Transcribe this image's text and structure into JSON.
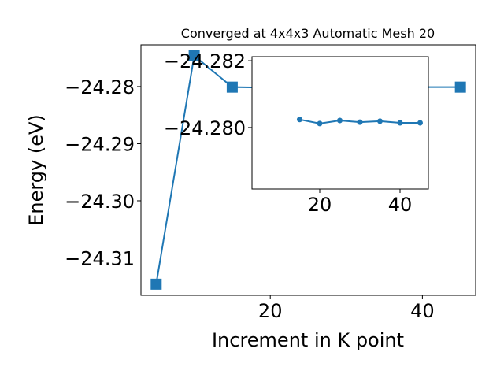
{
  "chart_data": [
    {
      "type": "line",
      "title": "Converged at 4x4x3 Automatic Mesh 20",
      "x_label": "Increment in K point",
      "y_label": "Energy (eV)",
      "x": [
        5,
        10,
        15,
        20,
        25,
        30,
        35,
        40,
        45
      ],
      "series": [
        {
          "color": "#1f77b4",
          "marker": "square",
          "values": [
            -24.3146,
            -24.2746,
            -24.2801,
            -24.2802,
            -24.2801,
            -24.2802,
            -24.2802,
            -24.2801,
            -24.2801
          ]
        }
      ],
      "xlim": [
        3,
        47
      ],
      "ylim": [
        -24.31655,
        -24.2727
      ],
      "xticks": [
        20,
        40
      ],
      "yticks": [
        {
          "value": -24.31,
          "label": "−24.31"
        },
        {
          "value": -24.3,
          "label": "−24.30"
        },
        {
          "value": -24.29,
          "label": "−24.29"
        },
        {
          "value": -24.28,
          "label": "−24.28"
        }
      ]
    },
    {
      "type": "line",
      "inset": true,
      "x": [
        15,
        20,
        25,
        30,
        35,
        40,
        45
      ],
      "series": [
        {
          "color": "#1f77b4",
          "marker": "circle",
          "values": [
            -24.28024,
            -24.28012,
            -24.28021,
            -24.28016,
            -24.28019,
            -24.28014,
            -24.28014
          ]
        }
      ],
      "xlim": [
        3.14,
        47.06
      ],
      "ylim": [
        -24.27816,
        -24.28212
      ],
      "xticks": [
        20,
        40
      ],
      "yticks": [
        {
          "value": -24.282,
          "label": "−24.282"
        },
        {
          "value": -24.28,
          "label": "−24.280"
        }
      ]
    }
  ]
}
